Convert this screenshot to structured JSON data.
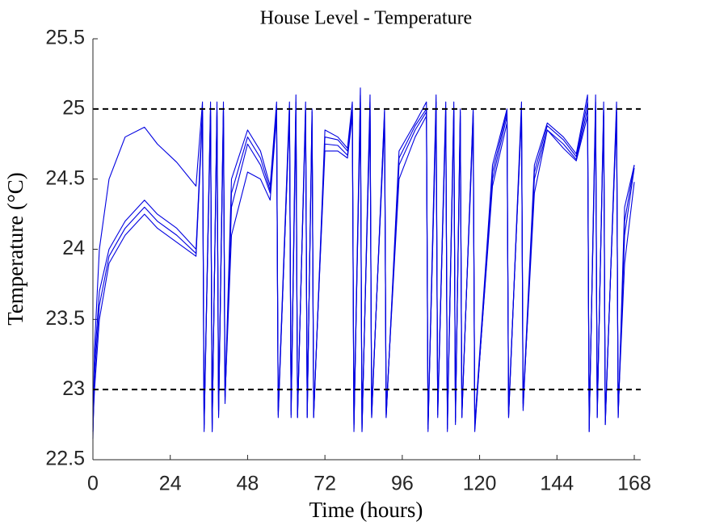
{
  "chart_data": {
    "type": "line",
    "title": "House Level - Temperature",
    "x_label": "Time (hours)",
    "y_label": "Temperature (°C)",
    "xlim": [
      0,
      170
    ],
    "ylim": [
      22.5,
      25.5
    ],
    "xticks": [
      0,
      24,
      48,
      72,
      96,
      120,
      144,
      168
    ],
    "yticks": [
      22.5,
      23,
      23.5,
      24,
      24.5,
      25,
      25.5
    ],
    "reference_lines": [
      25,
      23
    ],
    "reference_color": "#000000",
    "x": [
      0,
      0.5,
      2,
      5,
      10,
      16,
      20,
      26,
      32,
      34,
      34.5,
      36.5,
      37,
      38.5,
      39,
      40.5,
      41,
      43,
      48,
      52,
      55,
      57,
      57.5,
      61,
      61.5,
      63,
      63.5,
      66,
      66.5,
      68,
      68.5,
      72,
      76,
      79,
      80.5,
      81,
      83,
      83.5,
      86,
      86.5,
      90.5,
      91,
      95,
      100,
      103.5,
      104,
      106.5,
      107,
      109.5,
      110,
      112,
      112.5,
      114,
      114.5,
      118,
      118.5,
      124,
      128.5,
      129,
      133,
      133.5,
      137,
      141,
      146,
      150,
      153.5,
      154,
      156,
      156.5,
      158.5,
      159,
      162.5,
      163,
      165,
      168
    ],
    "series": [
      {
        "color": "#0000e0",
        "values": [
          22.7,
          23.3,
          24.0,
          24.5,
          24.8,
          24.87,
          24.75,
          24.62,
          24.45,
          25.05,
          22.75,
          25.05,
          22.7,
          25.05,
          22.85,
          25.05,
          22.95,
          24.5,
          24.85,
          24.7,
          24.45,
          25.05,
          22.85,
          25.05,
          22.85,
          25.1,
          22.8,
          25.05,
          22.8,
          25.0,
          22.8,
          24.85,
          24.8,
          24.72,
          25.05,
          22.75,
          25.15,
          22.7,
          25.1,
          22.8,
          25.0,
          22.8,
          24.7,
          24.9,
          25.05,
          22.75,
          25.1,
          22.85,
          25.05,
          22.75,
          25.05,
          22.8,
          25.0,
          22.8,
          25.0,
          22.75,
          24.6,
          25.0,
          22.8,
          25.05,
          22.9,
          24.6,
          24.9,
          24.8,
          24.68,
          25.1,
          22.7,
          25.1,
          22.8,
          25.05,
          22.75,
          25.05,
          22.8,
          24.3,
          24.6
        ]
      },
      {
        "color": "#0000e0",
        "values": [
          22.65,
          23.2,
          23.7,
          24.0,
          24.2,
          24.35,
          24.25,
          24.15,
          24.0,
          25.0,
          22.7,
          25.0,
          22.7,
          25.0,
          22.8,
          25.0,
          22.9,
          24.4,
          24.8,
          24.65,
          24.42,
          25.0,
          22.8,
          25.0,
          22.8,
          25.05,
          22.8,
          25.0,
          22.8,
          24.98,
          22.8,
          24.8,
          24.78,
          24.7,
          25.0,
          22.7,
          25.1,
          22.7,
          25.05,
          22.8,
          24.98,
          22.8,
          24.65,
          24.88,
          25.0,
          22.7,
          25.05,
          22.8,
          25.0,
          22.7,
          25.0,
          22.75,
          24.98,
          22.8,
          24.98,
          22.7,
          24.55,
          24.98,
          22.8,
          25.0,
          22.85,
          24.55,
          24.88,
          24.78,
          24.66,
          25.05,
          22.7,
          25.05,
          22.8,
          25.0,
          22.75,
          25.0,
          22.8,
          24.2,
          24.6
        ]
      },
      {
        "color": "#0000e0",
        "values": [
          22.7,
          23.1,
          23.6,
          23.95,
          24.15,
          24.3,
          24.2,
          24.1,
          23.97,
          24.98,
          22.72,
          24.98,
          22.72,
          24.98,
          22.82,
          24.98,
          22.92,
          24.3,
          24.75,
          24.6,
          24.4,
          24.98,
          22.82,
          24.98,
          22.82,
          25.0,
          22.82,
          24.98,
          22.82,
          24.95,
          22.82,
          24.75,
          24.74,
          24.67,
          24.98,
          22.72,
          25.05,
          22.72,
          25.0,
          22.82,
          24.95,
          22.82,
          24.6,
          24.85,
          24.98,
          22.72,
          25.0,
          22.82,
          24.98,
          22.72,
          24.98,
          22.77,
          24.95,
          22.82,
          24.95,
          22.72,
          24.5,
          24.95,
          22.82,
          24.98,
          22.87,
          24.5,
          24.85,
          24.75,
          24.64,
          25.0,
          22.72,
          25.0,
          22.82,
          24.98,
          22.77,
          24.98,
          22.82,
          24.1,
          24.58
        ]
      },
      {
        "color": "#0000e0",
        "values": [
          22.75,
          23.0,
          23.5,
          23.9,
          24.1,
          24.25,
          24.15,
          24.05,
          23.95,
          24.95,
          22.75,
          24.95,
          22.75,
          24.95,
          22.85,
          24.95,
          22.95,
          24.1,
          24.55,
          24.5,
          24.35,
          24.95,
          22.85,
          24.95,
          22.85,
          24.95,
          22.85,
          24.95,
          22.85,
          24.9,
          22.85,
          24.7,
          24.7,
          24.65,
          24.95,
          22.75,
          25.0,
          22.75,
          24.95,
          22.85,
          24.9,
          22.85,
          24.5,
          24.8,
          24.95,
          22.75,
          24.95,
          22.85,
          24.95,
          22.75,
          24.95,
          22.8,
          24.9,
          22.85,
          24.9,
          22.75,
          24.45,
          24.9,
          22.85,
          24.95,
          22.9,
          24.4,
          24.85,
          24.72,
          24.63,
          24.95,
          22.75,
          24.95,
          22.85,
          24.95,
          22.8,
          24.95,
          22.85,
          23.9,
          24.48
        ]
      }
    ]
  }
}
